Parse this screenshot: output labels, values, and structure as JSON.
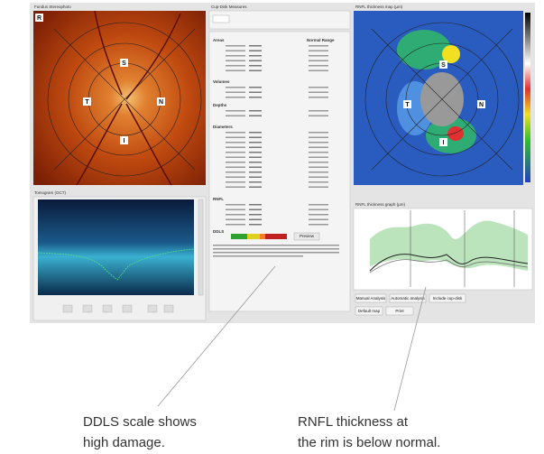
{
  "panels": {
    "fundus": {
      "title": "Fundus Stereophoto",
      "eye": "R",
      "sectors": [
        "S",
        "T",
        "N",
        "I"
      ]
    },
    "tomogram": {
      "title": "Tomogram (OCT)"
    },
    "measures": {
      "title": "Cup-Disk Measures",
      "sections": [
        "Areas",
        "Volumes",
        "Depths",
        "Diameters",
        "RNFL",
        "DDLS"
      ],
      "normal_range": "Normal Range",
      "button": "Preview"
    },
    "map": {
      "title": "RNFL thickness map (µm)",
      "sectors": [
        "S",
        "T",
        "N",
        "I"
      ]
    },
    "graph": {
      "title": "RNFL thickness graph (µm)"
    },
    "buttons": [
      "Manual Analysis",
      "Automatic analysis",
      "Include cup-disk",
      "Default map",
      "Print"
    ]
  },
  "annotations": [
    {
      "lines": [
        "DDLS scale shows",
        "high damage."
      ]
    },
    {
      "lines": [
        "RNFL thickness at",
        "the rim is below normal."
      ]
    }
  ]
}
